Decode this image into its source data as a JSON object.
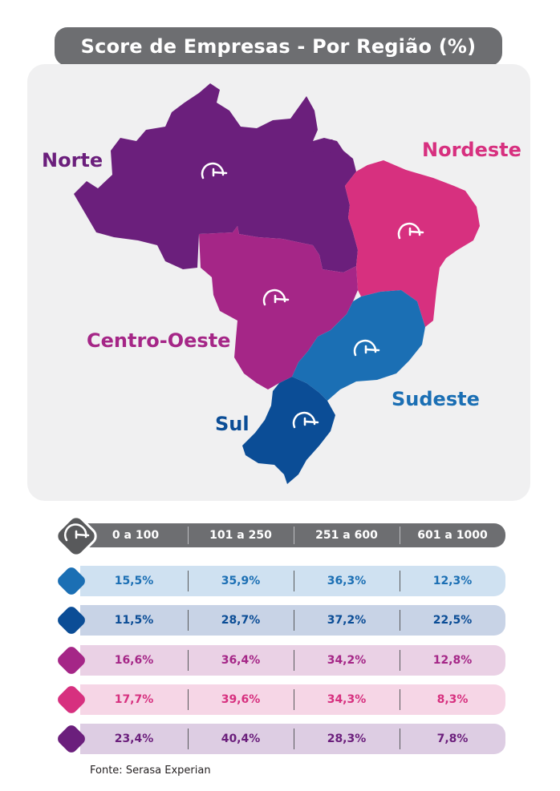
{
  "title": "Score de Empresas - Por Região (%)",
  "colors": {
    "norte": "#6b1f7c",
    "nordeste": "#d7307f",
    "centro_oeste": "#a52687",
    "sudeste": "#1b6fb4",
    "sul": "#0b4d96",
    "header_gray": "#6d6e71"
  },
  "regions": {
    "norte": "Norte",
    "nordeste": "Nordeste",
    "centro_oeste": "Centro-Oeste",
    "sudeste": "Sudeste",
    "sul": "Sul"
  },
  "icon": "speedometer-icon",
  "chart_data": {
    "type": "table",
    "columns": [
      "0 a 100",
      "101 a 250",
      "251 a 600",
      "601 a 1000"
    ],
    "rows": [
      {
        "region": "Sudeste",
        "values": [
          "15,5%",
          "35,9%",
          "36,3%",
          "12,3%"
        ]
      },
      {
        "region": "Sul",
        "values": [
          "11,5%",
          "28,7%",
          "37,2%",
          "22,5%"
        ]
      },
      {
        "region": "Centro-Oeste",
        "values": [
          "16,6%",
          "36,4%",
          "34,2%",
          "12,8%"
        ]
      },
      {
        "region": "Nordeste",
        "values": [
          "17,7%",
          "39,6%",
          "34,3%",
          "8,3%"
        ]
      },
      {
        "region": "Norte",
        "values": [
          "23,4%",
          "40,4%",
          "28,3%",
          "7,8%"
        ]
      }
    ]
  },
  "source": "Fonte: Serasa Experian"
}
